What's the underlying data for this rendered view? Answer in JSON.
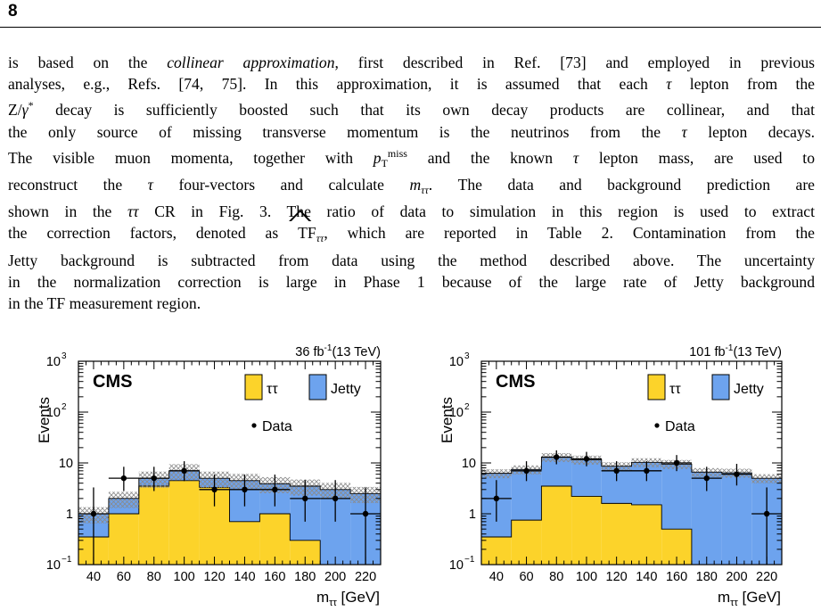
{
  "page_number": "8",
  "paragraph": {
    "lines": [
      [
        {
          "t": "is based on the "
        },
        {
          "t": "collinear approximation",
          "i": true
        },
        {
          "t": ", first described in Ref. [73] and employed in previous"
        }
      ],
      [
        {
          "t": "analyses, e.g., Refs. [74, 75]. In this approximation, it is assumed that each "
        },
        {
          "t": "τ",
          "i": true
        },
        {
          "t": " lepton from the"
        }
      ],
      [
        {
          "t": "Z/"
        },
        {
          "t": "γ",
          "i": true
        },
        {
          "t": "*",
          "sup": true
        },
        {
          "t": " decay is sufficiently boosted such that its own decay products are collinear, and that"
        }
      ],
      [
        {
          "t": "the only source of missing transverse momentum is the neutrinos from the "
        },
        {
          "t": "τ",
          "i": true
        },
        {
          "t": " lepton decays."
        }
      ],
      [
        {
          "t": "The visible muon momenta, together with "
        },
        {
          "t": "p",
          "i": true
        },
        {
          "t": "T",
          "sub": true
        },
        {
          "t": "miss",
          "sup": true
        },
        {
          "t": " and the known "
        },
        {
          "t": "τ",
          "i": true
        },
        {
          "t": " lepton mass, are used to"
        }
      ],
      [
        {
          "t": "reconstruct the "
        },
        {
          "t": "τ",
          "i": true
        },
        {
          "t": " four-vectors and calculate "
        },
        {
          "t": "m",
          "i": true
        },
        {
          "t": "ττ",
          "sub": true,
          "i": true
        },
        {
          "t": ". The data and background prediction are"
        }
      ],
      [
        {
          "t": "shown in the "
        },
        {
          "t": "ττ",
          "i": true
        },
        {
          "t": " CR in Fig. 3. The ratio of data to simulation in this region is used to extract"
        }
      ],
      [
        {
          "t": "the correction factors, denoted as "
        },
        {
          "t": "TF",
          "hat": true
        },
        {
          "t": "ττ",
          "sub": true,
          "i": true
        },
        {
          "t": ", which are reported in Table 2. Contamination from the"
        }
      ],
      [
        {
          "t": "Jetty background is subtracted from data using the method described above. The uncertainty"
        }
      ],
      [
        {
          "t": "in the normalization correction is large in Phase 1 because of the large rate of Jetty background"
        }
      ],
      [
        {
          "t": "in the TF measurement region."
        }
      ]
    ]
  },
  "chart_data": [
    {
      "type": "bar",
      "experiment": "CMS",
      "lumi_label": "36 fb",
      "lumi_exp": "-1",
      "energy_label": "(13 TeV)",
      "ylabel": "Events",
      "xlabel": "m",
      "xlabel_sub": "ττ",
      "xlabel_unit": "[GeV]",
      "yscale": "log",
      "ylim": [
        0.1,
        1000
      ],
      "xlim": [
        30,
        230
      ],
      "xticks": [
        40,
        60,
        80,
        100,
        120,
        140,
        160,
        180,
        200,
        220
      ],
      "yticks": [
        {
          "v": 0.1,
          "b": "10",
          "e": "−1"
        },
        {
          "v": 1,
          "b": "1",
          "e": ""
        },
        {
          "v": 10,
          "b": "10",
          "e": ""
        },
        {
          "v": 100,
          "b": "10",
          "e": "2"
        },
        {
          "v": 1000,
          "b": "10",
          "e": "3"
        }
      ],
      "bin_edges": [
        30,
        50,
        70,
        90,
        110,
        130,
        150,
        170,
        190,
        210,
        230
      ],
      "stack": [
        {
          "name": "ττ",
          "color": "#fcd32a",
          "values": [
            0.35,
            1.0,
            3.5,
            4.5,
            3.3,
            0.7,
            1.0,
            0.3,
            0.0,
            0.0
          ]
        },
        {
          "name": "Jetty",
          "color": "#6da3ee",
          "values": [
            0.65,
            1.0,
            1.5,
            2.5,
            1.7,
            3.8,
            2.9,
            3.2,
            3.0,
            2.5
          ]
        }
      ],
      "uncertainty_band": {
        "label": "stat",
        "rel": 0.35
      },
      "data": {
        "name": "Data",
        "x": [
          40,
          60,
          80,
          100,
          120,
          140,
          160,
          180,
          200,
          220
        ],
        "y": [
          1,
          5,
          5,
          7,
          3,
          3,
          3,
          2,
          2,
          1
        ],
        "err_lo": [
          0.9,
          2.2,
          2.2,
          2.6,
          1.6,
          1.6,
          1.6,
          1.3,
          1.3,
          0.95
        ],
        "err_hi": [
          2.3,
          3.4,
          3.4,
          3.8,
          2.9,
          2.9,
          2.9,
          2.6,
          2.6,
          2.3
        ]
      },
      "legend": [
        {
          "label": "ττ",
          "color": "#fcd32a"
        },
        {
          "label": "Jetty",
          "color": "#6da3ee"
        }
      ],
      "legend_data": "Data"
    },
    {
      "type": "bar",
      "experiment": "CMS",
      "lumi_label": "101 fb",
      "lumi_exp": "-1",
      "energy_label": "(13 TeV)",
      "ylabel": "Events",
      "xlabel": "m",
      "xlabel_sub": "ττ",
      "xlabel_unit": "[GeV]",
      "yscale": "log",
      "ylim": [
        0.1,
        1000
      ],
      "xlim": [
        30,
        230
      ],
      "xticks": [
        40,
        60,
        80,
        100,
        120,
        140,
        160,
        180,
        200,
        220
      ],
      "yticks": [
        {
          "v": 0.1,
          "b": "10",
          "e": "−1"
        },
        {
          "v": 1,
          "b": "1",
          "e": ""
        },
        {
          "v": 10,
          "b": "10",
          "e": ""
        },
        {
          "v": 100,
          "b": "10",
          "e": "2"
        },
        {
          "v": 1000,
          "b": "10",
          "e": "3"
        }
      ],
      "bin_edges": [
        30,
        50,
        70,
        90,
        110,
        130,
        150,
        170,
        190,
        210,
        230
      ],
      "stack": [
        {
          "name": "ττ",
          "color": "#fcd32a",
          "values": [
            0.35,
            0.75,
            3.5,
            2.2,
            1.6,
            1.5,
            0.5,
            0.0,
            0.0,
            0.0
          ]
        },
        {
          "name": "Jetty",
          "color": "#6da3ee",
          "values": [
            5.9,
            6.7,
            9.5,
            9.4,
            7.0,
            8.8,
            9.0,
            6.6,
            6.4,
            5.0
          ]
        }
      ],
      "uncertainty_band": {
        "label": "stat",
        "rel": 0.2
      },
      "data": {
        "name": "Data",
        "x": [
          40,
          60,
          80,
          100,
          120,
          140,
          160,
          180,
          200,
          220
        ],
        "y": [
          2,
          7,
          13,
          12,
          7,
          7,
          10,
          5,
          6,
          1
        ],
        "err_lo": [
          1.3,
          2.6,
          3.6,
          3.4,
          2.6,
          2.6,
          3.1,
          2.2,
          2.4,
          0.95
        ],
        "err_hi": [
          2.6,
          3.8,
          4.7,
          4.5,
          3.8,
          3.8,
          4.3,
          3.4,
          3.6,
          2.3
        ]
      },
      "legend": [
        {
          "label": "ττ",
          "color": "#fcd32a"
        },
        {
          "label": "Jetty",
          "color": "#6da3ee"
        }
      ],
      "legend_data": "Data"
    }
  ]
}
